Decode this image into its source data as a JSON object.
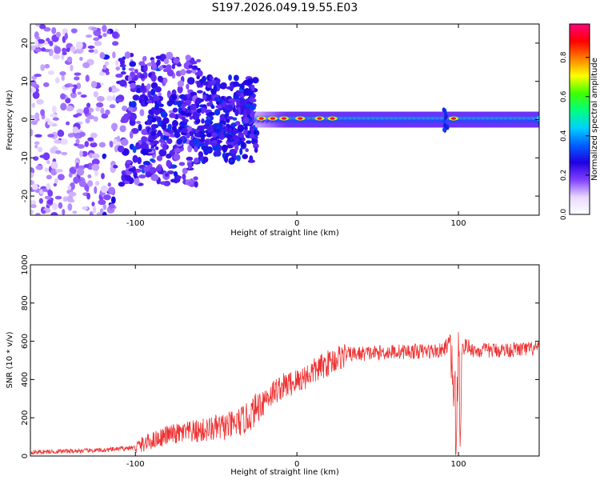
{
  "title": "S197.2026.049.19.55.E03",
  "chart_data": [
    {
      "type": "heatmap",
      "name": "spectrogram",
      "xlabel": "Height of straight line (km)",
      "ylabel": "Frequency (Hz)",
      "xlim": [
        -165,
        150
      ],
      "ylim": [
        -25,
        25
      ],
      "xticks": [
        -100,
        0,
        100
      ],
      "xtick_labels": [
        "-100",
        "0",
        "100"
      ],
      "yticks": [
        -20,
        -10,
        0,
        10,
        20
      ],
      "ytick_labels": [
        "-20",
        "-10",
        "0",
        "10",
        "20"
      ],
      "colorbar": {
        "label": "Normalized spectral amplitude",
        "range": [
          0,
          0.97
        ],
        "ticks": [
          0.0,
          0.2,
          0.4,
          0.6,
          0.8
        ],
        "tick_labels": [
          "0.0",
          "0.2",
          "0.4",
          "0.6",
          "0.8"
        ],
        "colormap": [
          "#ffffff",
          "#e8d8ff",
          "#8040ff",
          "#2000e0",
          "#0060ff",
          "#00d0ff",
          "#00ff80",
          "#40ff00",
          "#ffff00",
          "#ff8000",
          "#ff0000",
          "#ff0080"
        ]
      },
      "ridge": {
        "x_start": -25,
        "x_end": 150,
        "frequency_hz": 0,
        "hotspots_x": [
          -22,
          -15,
          -8,
          2,
          14,
          22,
          97
        ],
        "notch_x": 92
      }
    },
    {
      "type": "line",
      "name": "snr",
      "xlabel": "Height of straight line (km)",
      "ylabel": "SNR (10 * v/v)",
      "xlim": [
        -165,
        150
      ],
      "ylim": [
        0,
        1000
      ],
      "xticks": [
        -100,
        0,
        100
      ],
      "xtick_labels": [
        "-100",
        "0",
        "100"
      ],
      "yticks": [
        0,
        200,
        400,
        600,
        800,
        1000
      ],
      "ytick_labels": [
        "0",
        "200",
        "400",
        "600",
        "800",
        "1000"
      ],
      "color": "#ee3333",
      "profile_x": [
        -165,
        -120,
        -100,
        -90,
        -80,
        -60,
        -40,
        -30,
        -20,
        -10,
        0,
        10,
        20,
        30,
        60,
        90,
        95,
        98,
        99,
        100,
        101,
        102,
        105,
        110,
        150
      ],
      "profile_y": [
        20,
        30,
        45,
        80,
        110,
        130,
        160,
        200,
        300,
        360,
        390,
        440,
        490,
        530,
        545,
        550,
        600,
        200,
        100,
        600,
        250,
        550,
        580,
        550,
        560
      ]
    }
  ]
}
